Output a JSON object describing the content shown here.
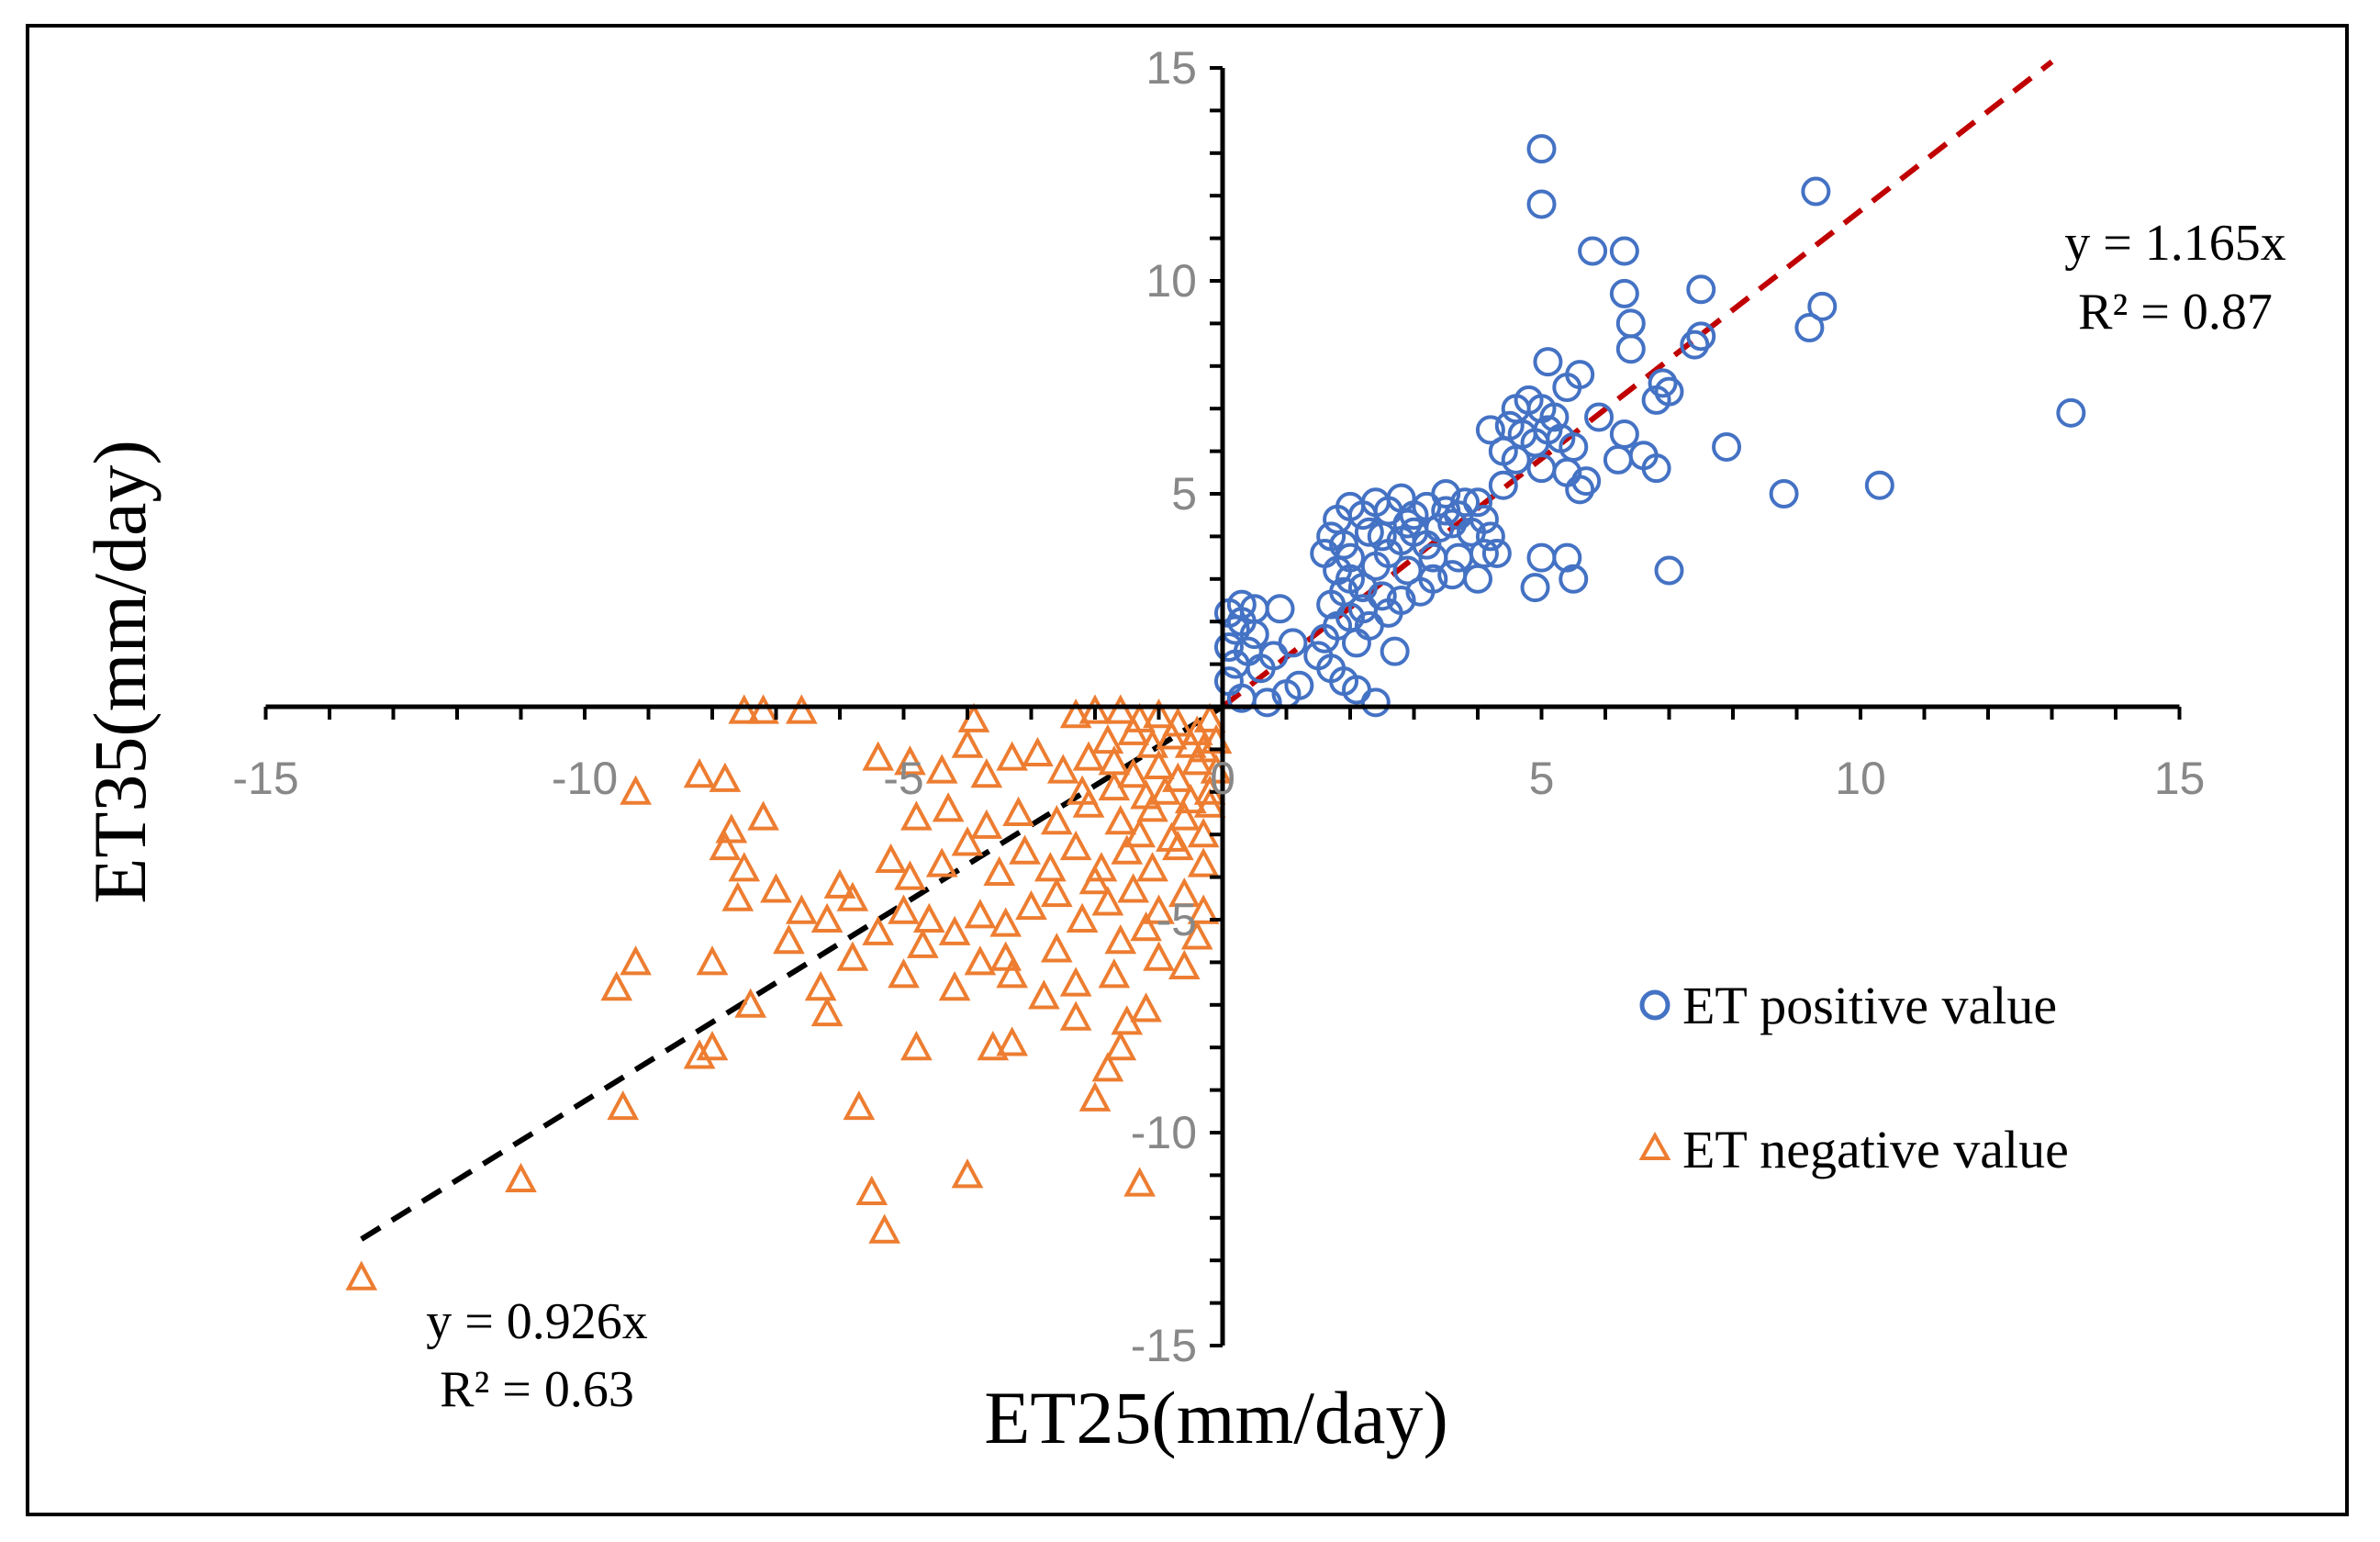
{
  "chart_data": {
    "type": "scatter",
    "title": "",
    "xlabel": "ET25(mm/day)",
    "ylabel": "ET35(mm/day)",
    "xlim": [
      -15,
      15
    ],
    "ylim": [
      -15,
      15
    ],
    "x_ticks": [
      "-15",
      "-10",
      "-5",
      "0",
      "5",
      "10",
      "15"
    ],
    "y_ticks": [
      "15",
      "10",
      "5",
      "-5",
      "-10",
      "-15"
    ],
    "legend_position": "right",
    "series": [
      {
        "name": "ET positive value",
        "marker": "circle",
        "color": "#4472C4",
        "points": [
          [
            5.0,
            13.1
          ],
          [
            9.3,
            12.1
          ],
          [
            5.0,
            11.8
          ],
          [
            5.8,
            10.7
          ],
          [
            6.3,
            10.7
          ],
          [
            7.5,
            9.8
          ],
          [
            6.3,
            9.7
          ],
          [
            9.4,
            9.4
          ],
          [
            6.4,
            9.0
          ],
          [
            9.2,
            8.9
          ],
          [
            7.5,
            8.7
          ],
          [
            6.4,
            8.4
          ],
          [
            7.4,
            8.5
          ],
          [
            5.1,
            8.1
          ],
          [
            13.3,
            6.9
          ],
          [
            5.6,
            7.8
          ],
          [
            5.4,
            7.5
          ],
          [
            6.9,
            7.6
          ],
          [
            6.8,
            7.2
          ],
          [
            7.0,
            7.4
          ],
          [
            4.6,
            7.0
          ],
          [
            4.8,
            7.2
          ],
          [
            5.0,
            7.0
          ],
          [
            5.2,
            6.8
          ],
          [
            4.5,
            6.6
          ],
          [
            4.7,
            6.4
          ],
          [
            4.9,
            6.2
          ],
          [
            5.1,
            6.5
          ],
          [
            5.3,
            6.3
          ],
          [
            5.5,
            6.1
          ],
          [
            4.2,
            6.5
          ],
          [
            4.4,
            6.0
          ],
          [
            4.6,
            5.8
          ],
          [
            5.0,
            5.6
          ],
          [
            5.4,
            5.5
          ],
          [
            5.7,
            5.3
          ],
          [
            6.2,
            5.8
          ],
          [
            6.6,
            5.9
          ],
          [
            6.3,
            6.4
          ],
          [
            5.9,
            6.8
          ],
          [
            7.9,
            6.1
          ],
          [
            6.8,
            5.6
          ],
          [
            5.6,
            5.1
          ],
          [
            10.3,
            5.2
          ],
          [
            8.8,
            5.0
          ],
          [
            5.0,
            3.5
          ],
          [
            5.4,
            3.5
          ],
          [
            5.5,
            3.0
          ],
          [
            4.9,
            2.8
          ],
          [
            7.0,
            3.2
          ],
          [
            4.0,
            3.0
          ],
          [
            4.3,
            3.6
          ],
          [
            4.1,
            4.4
          ],
          [
            3.8,
            4.8
          ],
          [
            3.5,
            5.0
          ],
          [
            3.2,
            4.7
          ],
          [
            3.0,
            4.5
          ],
          [
            2.8,
            4.9
          ],
          [
            2.6,
            4.6
          ],
          [
            2.4,
            4.8
          ],
          [
            2.2,
            4.5
          ],
          [
            2.0,
            4.7
          ],
          [
            1.8,
            4.4
          ],
          [
            1.7,
            4.0
          ],
          [
            1.6,
            3.6
          ],
          [
            1.8,
            3.2
          ],
          [
            2.0,
            3.0
          ],
          [
            2.2,
            2.8
          ],
          [
            2.4,
            3.3
          ],
          [
            2.6,
            3.6
          ],
          [
            2.8,
            3.9
          ],
          [
            3.0,
            4.1
          ],
          [
            3.2,
            3.8
          ],
          [
            3.4,
            4.2
          ],
          [
            3.6,
            4.3
          ],
          [
            3.9,
            4.1
          ],
          [
            4.2,
            4.0
          ],
          [
            3.7,
            3.5
          ],
          [
            3.3,
            3.0
          ],
          [
            2.9,
            3.2
          ],
          [
            2.5,
            2.6
          ],
          [
            2.2,
            2.3
          ],
          [
            2.0,
            2.1
          ],
          [
            1.8,
            1.9
          ],
          [
            1.6,
            1.6
          ],
          [
            1.7,
            2.4
          ],
          [
            1.9,
            2.7
          ],
          [
            2.1,
            1.5
          ],
          [
            2.3,
            1.9
          ],
          [
            2.6,
            2.2
          ],
          [
            2.8,
            2.5
          ],
          [
            3.1,
            2.7
          ],
          [
            2.7,
            1.3
          ],
          [
            2.4,
            0.1
          ],
          [
            1.5,
            1.2
          ],
          [
            1.7,
            0.9
          ],
          [
            1.9,
            0.6
          ],
          [
            2.1,
            0.4
          ],
          [
            1.2,
            0.5
          ],
          [
            1.0,
            0.3
          ],
          [
            0.7,
            0.1
          ],
          [
            0.3,
            0.2
          ],
          [
            0.1,
            0.6
          ],
          [
            0.2,
            1.0
          ],
          [
            0.1,
            1.4
          ],
          [
            0.2,
            1.8
          ],
          [
            0.1,
            2.2
          ],
          [
            0.3,
            2.0
          ],
          [
            0.5,
            1.7
          ],
          [
            0.4,
            1.3
          ],
          [
            0.6,
            0.9
          ],
          [
            0.8,
            1.2
          ],
          [
            0.9,
            2.3
          ],
          [
            1.1,
            1.5
          ],
          [
            0.5,
            2.3
          ],
          [
            0.3,
            2.4
          ],
          [
            3.5,
            4.6
          ],
          [
            2.9,
            4.3
          ],
          [
            2.3,
            4.1
          ],
          [
            1.9,
            3.8
          ],
          [
            4.0,
            4.8
          ],
          [
            3.7,
            4.5
          ],
          [
            2.5,
            4.0
          ],
          [
            3.3,
            3.5
          ],
          [
            4.4,
            5.2
          ],
          [
            3.6,
            3.1
          ],
          [
            4.1,
            3.6
          ],
          [
            2.0,
            3.5
          ]
        ]
      },
      {
        "name": "ET negative value",
        "marker": "triangle",
        "color": "#ED7D31",
        "points": [
          [
            -13.5,
            -13.4
          ],
          [
            -11.0,
            -11.1
          ],
          [
            -5.3,
            -12.3
          ],
          [
            -5.5,
            -11.4
          ],
          [
            -4.0,
            -11.0
          ],
          [
            -1.3,
            -11.2
          ],
          [
            -9.4,
            -9.4
          ],
          [
            -5.7,
            -9.4
          ],
          [
            -2.0,
            -9.2
          ],
          [
            -1.8,
            -8.5
          ],
          [
            -1.6,
            -8.0
          ],
          [
            -4.8,
            -8.0
          ],
          [
            -8.0,
            -8.0
          ],
          [
            -8.2,
            -8.2
          ],
          [
            -3.6,
            -8.0
          ],
          [
            -3.3,
            -7.9
          ],
          [
            -2.3,
            -7.3
          ],
          [
            -1.5,
            -7.4
          ],
          [
            -1.2,
            -7.1
          ],
          [
            -9.2,
            -6.0
          ],
          [
            -9.5,
            -6.6
          ],
          [
            -8.0,
            -6.0
          ],
          [
            -7.4,
            -7.0
          ],
          [
            -6.3,
            -6.6
          ],
          [
            -6.2,
            -7.2
          ],
          [
            -5.0,
            -6.3
          ],
          [
            -4.2,
            -6.6
          ],
          [
            -3.8,
            -6.0
          ],
          [
            -3.3,
            -6.3
          ],
          [
            -2.8,
            -6.8
          ],
          [
            -2.3,
            -6.5
          ],
          [
            -1.7,
            -6.3
          ],
          [
            -1.0,
            -5.9
          ],
          [
            -0.6,
            -6.1
          ],
          [
            -7.6,
            -4.5
          ],
          [
            -7.0,
            -4.3
          ],
          [
            -6.6,
            -4.8
          ],
          [
            -6.2,
            -5.0
          ],
          [
            -5.8,
            -4.5
          ],
          [
            -5.4,
            -5.3
          ],
          [
            -5.0,
            -4.8
          ],
          [
            -4.6,
            -5.0
          ],
          [
            -4.2,
            -5.3
          ],
          [
            -3.8,
            -4.9
          ],
          [
            -3.4,
            -5.1
          ],
          [
            -3.0,
            -4.7
          ],
          [
            -2.6,
            -4.4
          ],
          [
            -2.2,
            -5.0
          ],
          [
            -1.8,
            -4.6
          ],
          [
            -1.4,
            -4.3
          ],
          [
            -1.0,
            -4.8
          ],
          [
            -0.6,
            -4.4
          ],
          [
            -0.3,
            -4.8
          ],
          [
            -7.8,
            -3.3
          ],
          [
            -7.5,
            -3.8
          ],
          [
            -5.2,
            -3.6
          ],
          [
            -4.9,
            -4.0
          ],
          [
            -4.4,
            -3.7
          ],
          [
            -4.0,
            -3.2
          ],
          [
            -3.5,
            -3.9
          ],
          [
            -3.1,
            -3.4
          ],
          [
            -2.7,
            -3.8
          ],
          [
            -2.3,
            -3.3
          ],
          [
            -1.9,
            -3.8
          ],
          [
            -1.5,
            -3.4
          ],
          [
            -1.1,
            -3.8
          ],
          [
            -0.7,
            -3.3
          ],
          [
            -0.3,
            -3.7
          ],
          [
            -7.7,
            -2.9
          ],
          [
            -7.2,
            -2.6
          ],
          [
            -4.8,
            -2.6
          ],
          [
            -4.3,
            -2.4
          ],
          [
            -3.7,
            -2.8
          ],
          [
            -3.2,
            -2.5
          ],
          [
            -2.6,
            -2.7
          ],
          [
            -2.1,
            -2.3
          ],
          [
            -1.6,
            -2.7
          ],
          [
            -1.1,
            -2.4
          ],
          [
            -0.6,
            -2.6
          ],
          [
            -0.2,
            -2.3
          ],
          [
            -9.2,
            -2.0
          ],
          [
            -8.2,
            -1.6
          ],
          [
            -7.8,
            -1.7
          ],
          [
            -5.4,
            -1.2
          ],
          [
            -4.9,
            -1.3
          ],
          [
            -4.4,
            -1.5
          ],
          [
            -4.0,
            -0.9
          ],
          [
            -3.7,
            -1.6
          ],
          [
            -3.3,
            -1.2
          ],
          [
            -2.9,
            -1.1
          ],
          [
            -2.5,
            -1.5
          ],
          [
            -2.1,
            -1.2
          ],
          [
            -1.7,
            -1.3
          ],
          [
            -1.4,
            -1.6
          ],
          [
            -1.0,
            -1.4
          ],
          [
            -0.7,
            -1.7
          ],
          [
            -0.4,
            -1.3
          ],
          [
            -0.1,
            -1.5
          ],
          [
            -7.5,
            -0.1
          ],
          [
            -7.2,
            -0.1
          ],
          [
            -6.6,
            -0.1
          ],
          [
            -3.9,
            -0.3
          ],
          [
            -2.3,
            -0.2
          ],
          [
            -2.0,
            -0.1
          ],
          [
            -1.6,
            -0.1
          ],
          [
            -1.3,
            -0.3
          ],
          [
            -1.0,
            -0.2
          ],
          [
            -0.7,
            -0.4
          ],
          [
            -0.4,
            -0.6
          ],
          [
            -0.2,
            -0.3
          ],
          [
            -0.1,
            -0.8
          ],
          [
            -0.3,
            -1.0
          ],
          [
            -0.5,
            -0.9
          ],
          [
            -0.8,
            -0.7
          ],
          [
            -1.1,
            -0.9
          ],
          [
            -1.4,
            -0.6
          ],
          [
            -1.8,
            -0.8
          ],
          [
            -0.2,
            -2.0
          ],
          [
            -0.5,
            -2.2
          ],
          [
            -0.9,
            -2.0
          ],
          [
            -1.2,
            -2.1
          ],
          [
            -0.3,
            -3.0
          ],
          [
            -0.8,
            -3.1
          ],
          [
            -1.3,
            -3.0
          ],
          [
            -1.6,
            -5.5
          ],
          [
            -1.2,
            -5.2
          ],
          [
            -0.4,
            -5.4
          ],
          [
            -2.6,
            -5.7
          ],
          [
            -3.4,
            -5.9
          ],
          [
            -4.7,
            -5.6
          ],
          [
            -5.8,
            -5.9
          ],
          [
            -6.8,
            -5.5
          ],
          [
            -6.0,
            -4.2
          ],
          [
            -2.0,
            -4.1
          ],
          [
            -1.7,
            -1.9
          ],
          [
            -2.2,
            -2.0
          ]
        ]
      }
    ],
    "trendlines": [
      {
        "series": "ET positive value",
        "slope": 1.165,
        "x_range": [
          0,
          13
        ],
        "color": "#C00000",
        "equation": "y = 1.165x",
        "r2": "R² = 0.87"
      },
      {
        "series": "ET negative value",
        "slope": 0.926,
        "x_range": [
          -13.5,
          0
        ],
        "color": "#000000",
        "equation": "y = 0.926x",
        "r2": "R² = 0.63"
      }
    ]
  }
}
